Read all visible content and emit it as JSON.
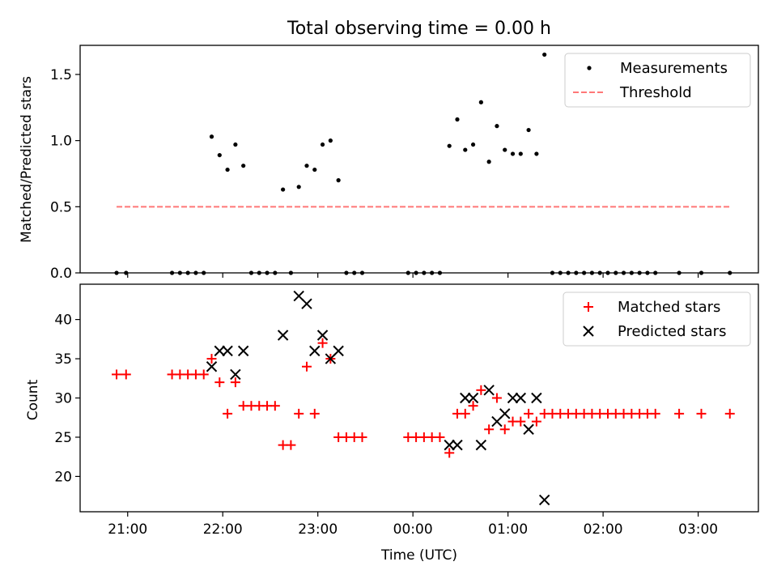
{
  "chart_data": [
    {
      "type": "scatter",
      "title": "Total observing time = 0.00 h",
      "xlabel": "",
      "ylabel": "Matched/Predicted stars",
      "ylim": [
        0,
        1.72
      ],
      "yticks": [
        0.0,
        0.5,
        1.0,
        1.5
      ],
      "ytick_labels": [
        "0.0",
        "0.5",
        "1.0",
        "1.5"
      ],
      "x_tick_labels_shown": false,
      "legend": {
        "placement": "top-right",
        "entries": [
          "Measurements",
          "Threshold"
        ]
      },
      "series": [
        {
          "name": "Measurements",
          "color": "#000000",
          "marker": "dot",
          "points": [
            [
              "20:53",
              0.0
            ],
            [
              "20:59",
              0.0
            ],
            [
              "21:28",
              0.0
            ],
            [
              "21:33",
              0.0
            ],
            [
              "21:38",
              0.0
            ],
            [
              "21:43",
              0.0
            ],
            [
              "21:48",
              0.0
            ],
            [
              "21:53",
              1.03
            ],
            [
              "21:58",
              0.89
            ],
            [
              "22:03",
              0.78
            ],
            [
              "22:08",
              0.97
            ],
            [
              "22:13",
              0.81
            ],
            [
              "22:18",
              0.0
            ],
            [
              "22:23",
              0.0
            ],
            [
              "22:28",
              0.0
            ],
            [
              "22:33",
              0.0
            ],
            [
              "22:38",
              0.63
            ],
            [
              "22:43",
              0.0
            ],
            [
              "22:48",
              0.65
            ],
            [
              "22:53",
              0.81
            ],
            [
              "22:58",
              0.78
            ],
            [
              "23:03",
              0.97
            ],
            [
              "23:08",
              1.0
            ],
            [
              "23:13",
              0.7
            ],
            [
              "23:18",
              0.0
            ],
            [
              "23:23",
              0.0
            ],
            [
              "23:28",
              0.0
            ],
            [
              "23:57",
              0.0
            ],
            [
              "00:02",
              0.0
            ],
            [
              "00:07",
              0.0
            ],
            [
              "00:12",
              0.0
            ],
            [
              "00:17",
              0.0
            ],
            [
              "00:23",
              0.96
            ],
            [
              "00:28",
              1.16
            ],
            [
              "00:33",
              0.93
            ],
            [
              "00:38",
              0.97
            ],
            [
              "00:43",
              1.29
            ],
            [
              "00:48",
              0.84
            ],
            [
              "00:53",
              1.11
            ],
            [
              "00:58",
              0.93
            ],
            [
              "01:03",
              0.9
            ],
            [
              "01:08",
              0.9
            ],
            [
              "01:13",
              1.08
            ],
            [
              "01:18",
              0.9
            ],
            [
              "01:23",
              1.65
            ],
            [
              "01:28",
              0.0
            ],
            [
              "01:33",
              0.0
            ],
            [
              "01:38",
              0.0
            ],
            [
              "01:43",
              0.0
            ],
            [
              "01:48",
              0.0
            ],
            [
              "01:53",
              0.0
            ],
            [
              "01:58",
              0.0
            ],
            [
              "02:03",
              0.0
            ],
            [
              "02:08",
              0.0
            ],
            [
              "02:13",
              0.0
            ],
            [
              "02:18",
              0.0
            ],
            [
              "02:23",
              0.0
            ],
            [
              "02:28",
              0.0
            ],
            [
              "02:33",
              0.0
            ],
            [
              "02:48",
              0.0
            ],
            [
              "03:02",
              0.0
            ],
            [
              "03:20",
              0.0
            ]
          ]
        },
        {
          "name": "Threshold",
          "color": "#ff7777",
          "style": "dashed",
          "x": [
            "20:53",
            "03:20"
          ],
          "y": [
            0.5,
            0.5
          ]
        }
      ]
    },
    {
      "type": "scatter",
      "title": "",
      "xlabel": "Time (UTC)",
      "ylabel": "Count",
      "ylim": [
        15.5,
        44.5
      ],
      "yticks": [
        20,
        25,
        30,
        35,
        40
      ],
      "ytick_labels": [
        "20",
        "25",
        "30",
        "35",
        "40"
      ],
      "x_range": [
        "20:30",
        "03:38"
      ],
      "xticks": [
        "21:00",
        "22:00",
        "23:00",
        "00:00",
        "01:00",
        "02:00",
        "03:00"
      ],
      "legend": {
        "placement": "top-right",
        "entries": [
          "Matched stars",
          "Predicted stars"
        ]
      },
      "series": [
        {
          "name": "Matched stars",
          "color": "#ff0000",
          "marker": "plus",
          "points": [
            [
              "20:53",
              33
            ],
            [
              "20:59",
              33
            ],
            [
              "21:28",
              33
            ],
            [
              "21:33",
              33
            ],
            [
              "21:38",
              33
            ],
            [
              "21:43",
              33
            ],
            [
              "21:48",
              33
            ],
            [
              "21:53",
              35
            ],
            [
              "21:58",
              32
            ],
            [
              "22:03",
              28
            ],
            [
              "22:08",
              32
            ],
            [
              "22:13",
              29
            ],
            [
              "22:18",
              29
            ],
            [
              "22:23",
              29
            ],
            [
              "22:28",
              29
            ],
            [
              "22:33",
              29
            ],
            [
              "22:38",
              24
            ],
            [
              "22:43",
              24
            ],
            [
              "22:48",
              28
            ],
            [
              "22:53",
              34
            ],
            [
              "22:58",
              28
            ],
            [
              "23:03",
              37
            ],
            [
              "23:08",
              35
            ],
            [
              "23:13",
              25
            ],
            [
              "23:18",
              25
            ],
            [
              "23:23",
              25
            ],
            [
              "23:28",
              25
            ],
            [
              "23:57",
              25
            ],
            [
              "00:02",
              25
            ],
            [
              "00:07",
              25
            ],
            [
              "00:12",
              25
            ],
            [
              "00:17",
              25
            ],
            [
              "00:23",
              23
            ],
            [
              "00:28",
              28
            ],
            [
              "00:33",
              28
            ],
            [
              "00:38",
              29
            ],
            [
              "00:43",
              31
            ],
            [
              "00:48",
              26
            ],
            [
              "00:53",
              30
            ],
            [
              "00:58",
              26
            ],
            [
              "01:03",
              27
            ],
            [
              "01:08",
              27
            ],
            [
              "01:13",
              28
            ],
            [
              "01:18",
              27
            ],
            [
              "01:23",
              28
            ],
            [
              "01:28",
              28
            ],
            [
              "01:33",
              28
            ],
            [
              "01:38",
              28
            ],
            [
              "01:43",
              28
            ],
            [
              "01:48",
              28
            ],
            [
              "01:53",
              28
            ],
            [
              "01:58",
              28
            ],
            [
              "02:03",
              28
            ],
            [
              "02:08",
              28
            ],
            [
              "02:13",
              28
            ],
            [
              "02:18",
              28
            ],
            [
              "02:23",
              28
            ],
            [
              "02:28",
              28
            ],
            [
              "02:33",
              28
            ],
            [
              "02:48",
              28
            ],
            [
              "03:02",
              28
            ],
            [
              "03:20",
              28
            ]
          ]
        },
        {
          "name": "Predicted stars",
          "color": "#000000",
          "marker": "x",
          "points": [
            [
              "21:53",
              34
            ],
            [
              "21:58",
              36
            ],
            [
              "22:03",
              36
            ],
            [
              "22:08",
              33
            ],
            [
              "22:13",
              36
            ],
            [
              "22:38",
              38
            ],
            [
              "22:48",
              43
            ],
            [
              "22:53",
              42
            ],
            [
              "22:58",
              36
            ],
            [
              "23:03",
              38
            ],
            [
              "23:08",
              35
            ],
            [
              "23:13",
              36
            ],
            [
              "00:23",
              24
            ],
            [
              "00:28",
              24
            ],
            [
              "00:33",
              30
            ],
            [
              "00:38",
              30
            ],
            [
              "00:43",
              24
            ],
            [
              "00:48",
              31
            ],
            [
              "00:53",
              27
            ],
            [
              "00:58",
              28
            ],
            [
              "01:03",
              30
            ],
            [
              "01:08",
              30
            ],
            [
              "01:13",
              26
            ],
            [
              "01:18",
              30
            ],
            [
              "01:23",
              17
            ]
          ]
        }
      ]
    }
  ]
}
